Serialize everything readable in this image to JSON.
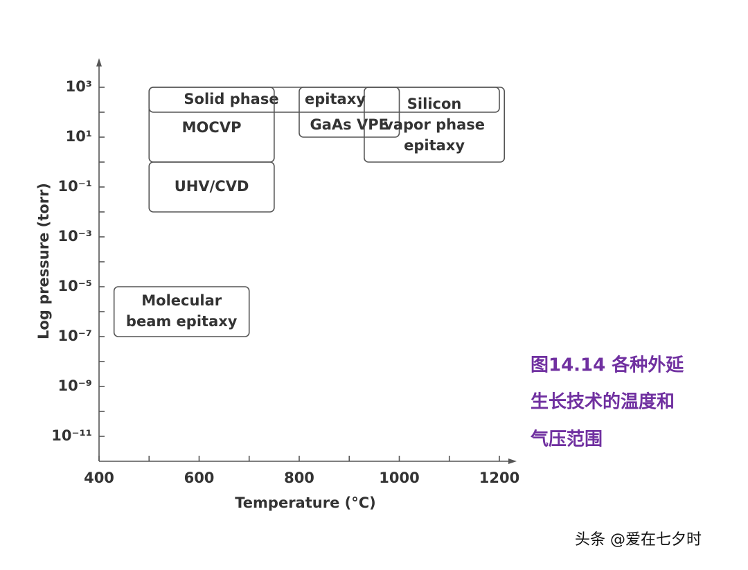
{
  "chart_data": {
    "type": "range-box",
    "x_label": "Temperature (°C)",
    "y_label": "Log pressure (torr)",
    "xlim": [
      400,
      1200
    ],
    "xticks": [
      400,
      600,
      800,
      1000,
      1200
    ],
    "xminorticks": [
      500,
      700,
      900,
      1100
    ],
    "ylim": [
      1e-12,
      10000
    ],
    "log_y": true,
    "yticks": [
      {
        "value": 1000,
        "label": "10³"
      },
      {
        "value": 10,
        "label": "10¹"
      },
      {
        "value": 0.1,
        "label": "10⁻¹"
      },
      {
        "value": 0.001,
        "label": "10⁻³"
      },
      {
        "value": 1e-05,
        "label": "10⁻⁵"
      },
      {
        "value": 1e-07,
        "label": "10⁻⁷"
      },
      {
        "value": 1e-09,
        "label": "10⁻⁹"
      },
      {
        "value": 1e-11,
        "label": "10⁻¹¹"
      }
    ],
    "yminorticks": [
      100,
      1,
      0.01,
      0.0001,
      1e-06,
      1e-08,
      1e-10
    ],
    "color": "#555555",
    "boxes": [
      {
        "label_lines": [
          "Solid phase",
          "epitaxy"
        ],
        "x": [
          500,
          1200
        ],
        "y": [
          100,
          1000
        ]
      },
      {
        "label_lines": [
          "MOCVP"
        ],
        "x": [
          500,
          750
        ],
        "y": [
          1,
          1000
        ]
      },
      {
        "label_lines": [
          "UHV/CVD"
        ],
        "x": [
          500,
          750
        ],
        "y": [
          0.01,
          1
        ]
      },
      {
        "label_lines": [
          "Molecular",
          "beam epitaxy"
        ],
        "x": [
          430,
          700
        ],
        "y": [
          1e-07,
          1e-05
        ]
      },
      {
        "label_lines": [
          "GaAs VPE"
        ],
        "x": [
          800,
          1000
        ],
        "y": [
          10,
          1000
        ]
      },
      {
        "label_lines": [
          "Silicon",
          "vapor phase",
          "epitaxy"
        ],
        "x": [
          930,
          1210
        ],
        "y": [
          1,
          1000
        ]
      }
    ]
  },
  "caption": {
    "lines": [
      "图14.14 各种外延",
      "生长技术的温度和",
      "气压范围"
    ],
    "color": "#7030a0"
  },
  "watermark": "头条 @爱在七夕时"
}
